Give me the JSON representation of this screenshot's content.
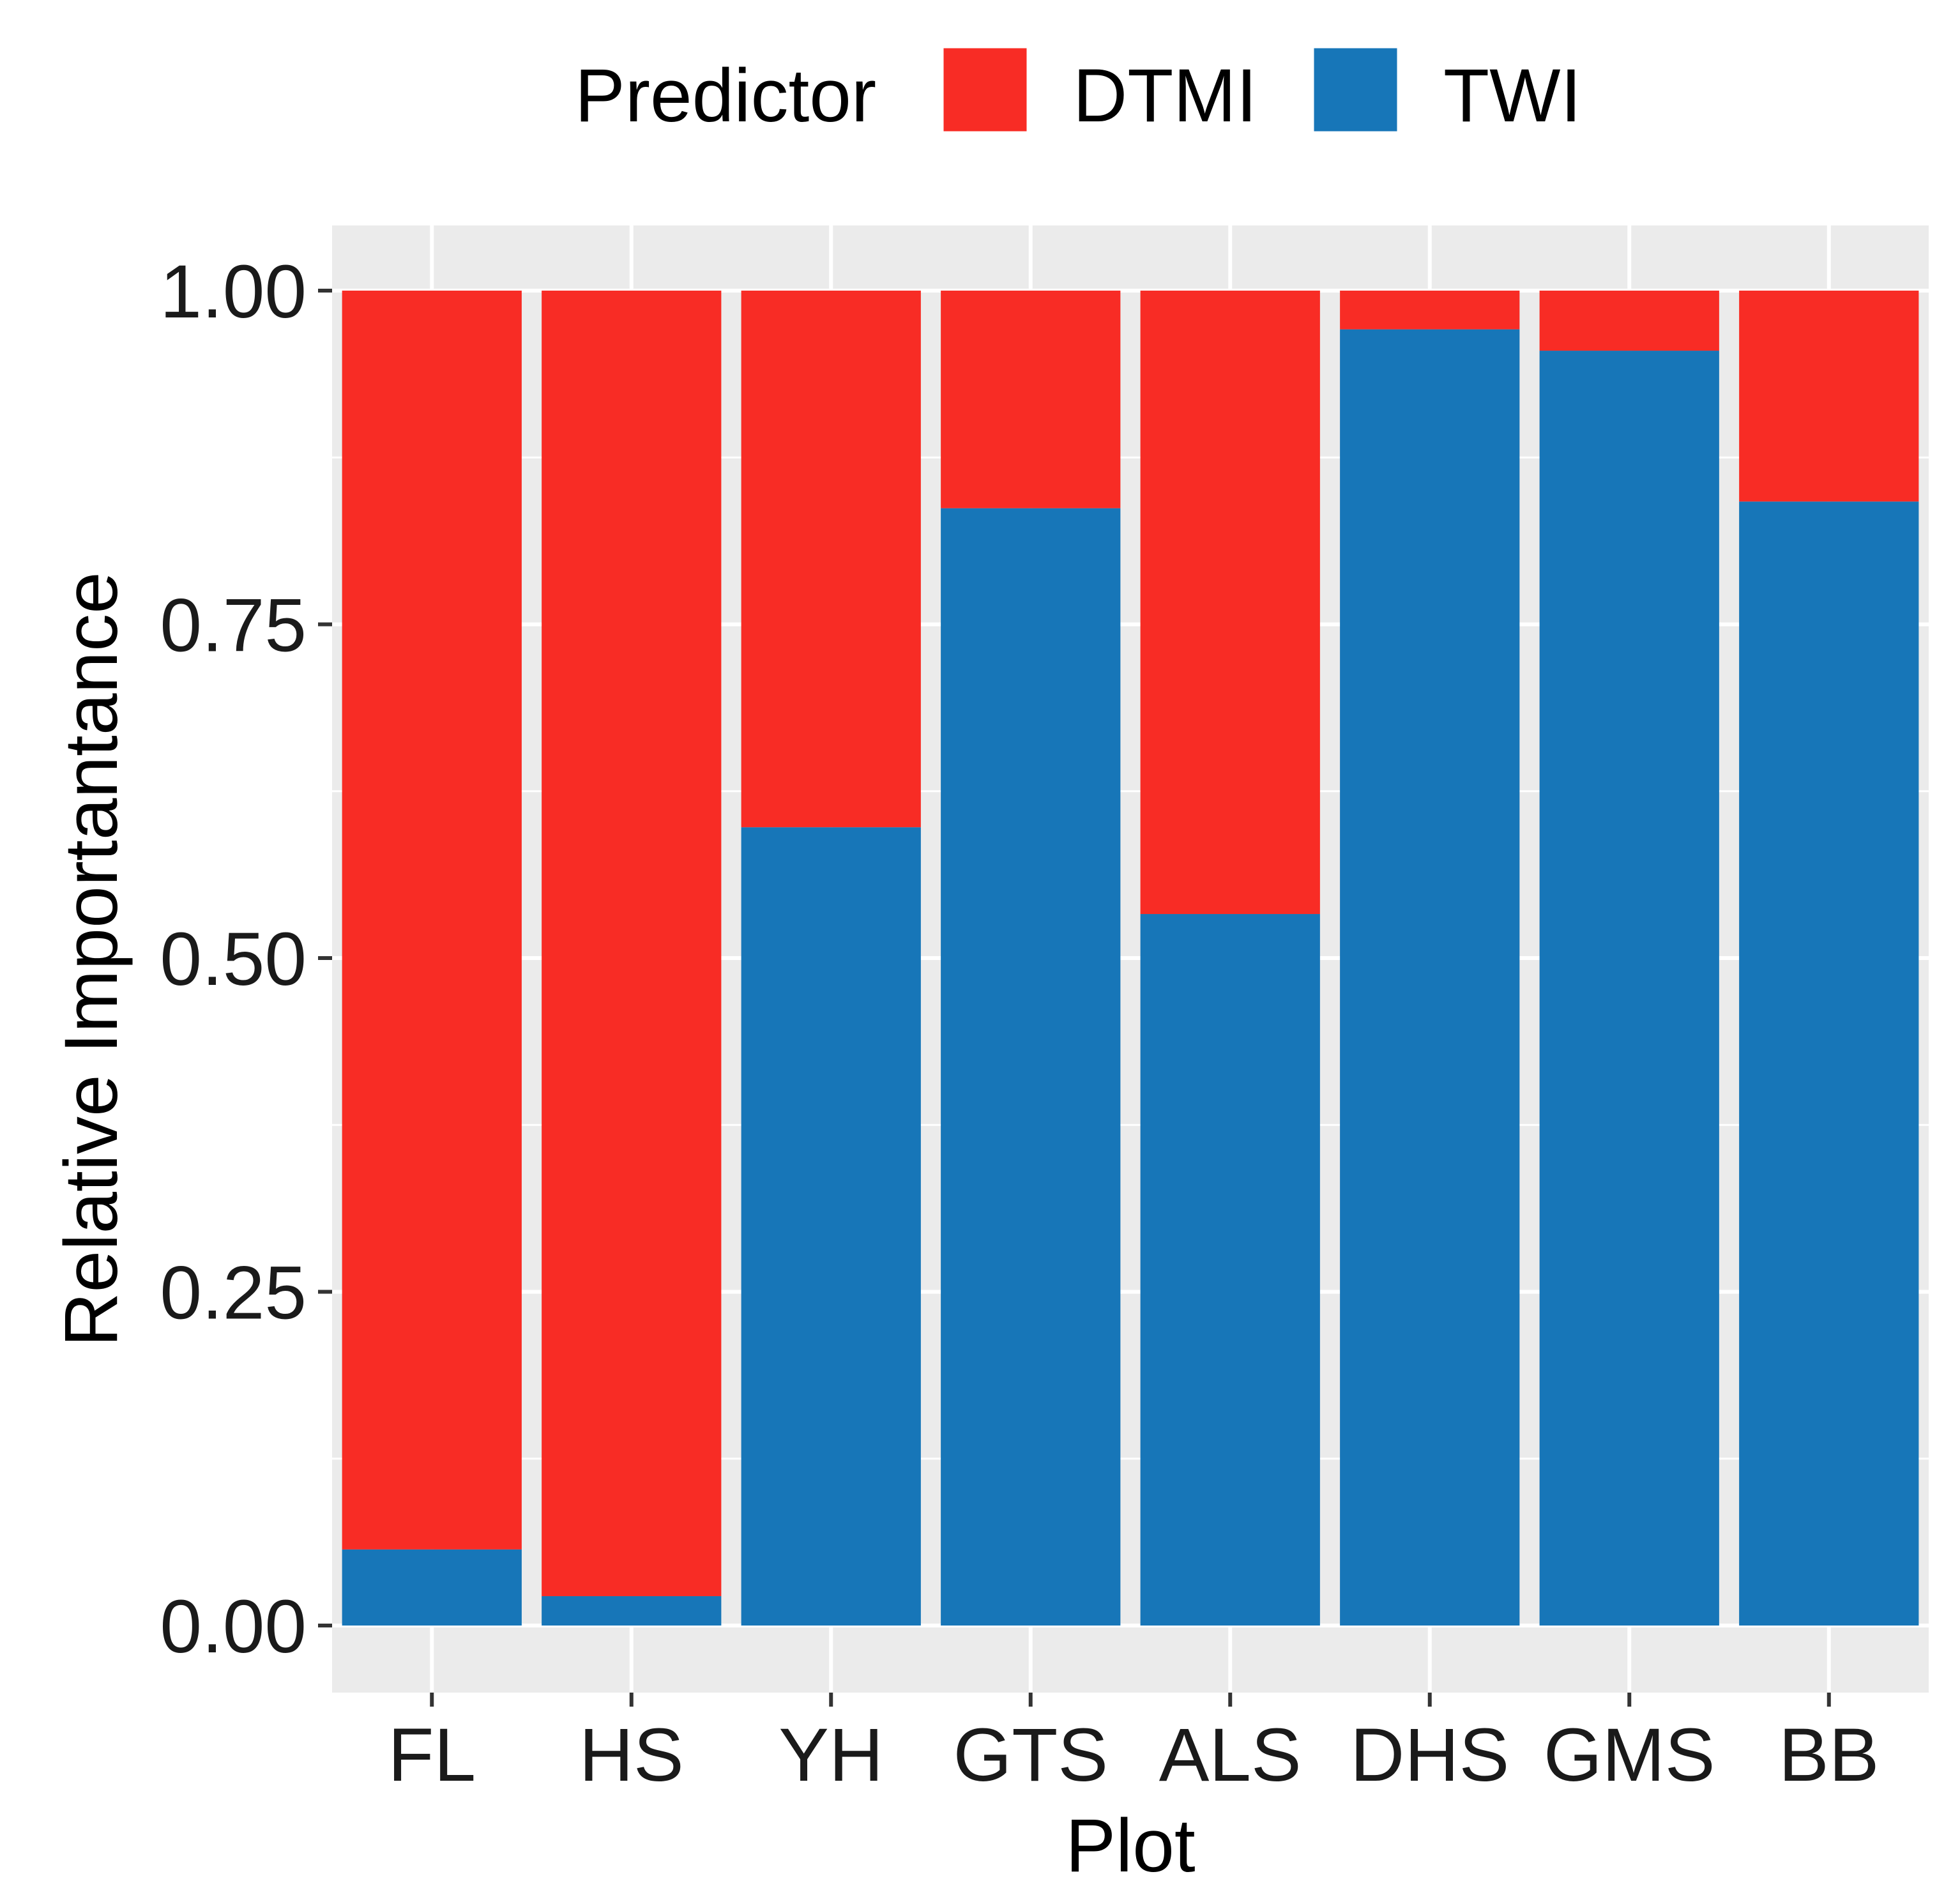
{
  "chart_data": {
    "type": "bar",
    "stacked": true,
    "title": "",
    "xlabel": "Plot",
    "ylabel": "Relative Importantance",
    "ylim": [
      0,
      1
    ],
    "yticks": [
      "0.00",
      "0.25",
      "0.50",
      "0.75",
      "1.00"
    ],
    "categories": [
      "FL",
      "HS",
      "YH",
      "GTS",
      "ALS",
      "DHS",
      "GMS",
      "BB"
    ],
    "series": [
      {
        "name": "TWI",
        "values": [
          0.057,
          0.022,
          0.598,
          0.837,
          0.533,
          0.971,
          0.955,
          0.842
        ]
      },
      {
        "name": "DTMI",
        "values": [
          0.943,
          0.978,
          0.402,
          0.163,
          0.467,
          0.029,
          0.045,
          0.158
        ]
      }
    ],
    "legend": {
      "title": "Predictor",
      "position": "top",
      "entries": [
        "DTMI",
        "TWI"
      ]
    },
    "grid": true
  },
  "colors": {
    "DTMI": "#F82C25",
    "TWI": "#1776B8",
    "panel": "#EBEBEB",
    "grid": "#FFFFFF"
  }
}
